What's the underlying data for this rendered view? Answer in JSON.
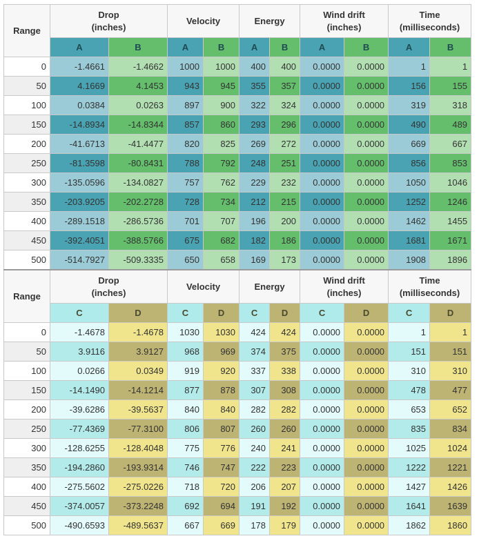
{
  "colors": {
    "A_header": "#4aa3b2",
    "B_header": "#64be6c",
    "A_light": "#9bcbd6",
    "A_dark": "#4aa3b2",
    "B_light": "#b2dfb2",
    "B_dark": "#64be6c",
    "C_header": "#b0ebeb",
    "D_header": "#bdb373",
    "C_light": "#e3fbfb",
    "C_dark": "#b3ebeb",
    "D_light": "#f0e48c",
    "D_dark": "#bdb373"
  },
  "headers": {
    "range": "Range",
    "drop": [
      "Drop",
      "(inches)"
    ],
    "velocity": "Velocity",
    "energy": "Energy",
    "wind": [
      "Wind drift",
      "(inches)"
    ],
    "time": [
      "Time",
      "(milliseconds)"
    ]
  },
  "tables": [
    {
      "first": "A",
      "second": "B",
      "rows": [
        {
          "range": "0",
          "drop": [
            "-1.4661",
            "-1.4662"
          ],
          "vel": [
            "1000",
            "1000"
          ],
          "en": [
            "400",
            "400"
          ],
          "wind": [
            "0.0000",
            "0.0000"
          ],
          "time": [
            "1",
            "1"
          ]
        },
        {
          "range": "50",
          "drop": [
            "4.1669",
            "4.1453"
          ],
          "vel": [
            "943",
            "945"
          ],
          "en": [
            "355",
            "357"
          ],
          "wind": [
            "0.0000",
            "0.0000"
          ],
          "time": [
            "156",
            "155"
          ]
        },
        {
          "range": "100",
          "drop": [
            "0.0384",
            "0.0263"
          ],
          "vel": [
            "897",
            "900"
          ],
          "en": [
            "322",
            "324"
          ],
          "wind": [
            "0.0000",
            "0.0000"
          ],
          "time": [
            "319",
            "318"
          ]
        },
        {
          "range": "150",
          "drop": [
            "-14.8934",
            "-14.8344"
          ],
          "vel": [
            "857",
            "860"
          ],
          "en": [
            "293",
            "296"
          ],
          "wind": [
            "0.0000",
            "0.0000"
          ],
          "time": [
            "490",
            "489"
          ]
        },
        {
          "range": "200",
          "drop": [
            "-41.6713",
            "-41.4477"
          ],
          "vel": [
            "820",
            "825"
          ],
          "en": [
            "269",
            "272"
          ],
          "wind": [
            "0.0000",
            "0.0000"
          ],
          "time": [
            "669",
            "667"
          ]
        },
        {
          "range": "250",
          "drop": [
            "-81.3598",
            "-80.8431"
          ],
          "vel": [
            "788",
            "792"
          ],
          "en": [
            "248",
            "251"
          ],
          "wind": [
            "0.0000",
            "0.0000"
          ],
          "time": [
            "856",
            "853"
          ]
        },
        {
          "range": "300",
          "drop": [
            "-135.0596",
            "-134.0827"
          ],
          "vel": [
            "757",
            "762"
          ],
          "en": [
            "229",
            "232"
          ],
          "wind": [
            "0.0000",
            "0.0000"
          ],
          "time": [
            "1050",
            "1046"
          ]
        },
        {
          "range": "350",
          "drop": [
            "-203.9205",
            "-202.2728"
          ],
          "vel": [
            "728",
            "734"
          ],
          "en": [
            "212",
            "215"
          ],
          "wind": [
            "0.0000",
            "0.0000"
          ],
          "time": [
            "1252",
            "1246"
          ]
        },
        {
          "range": "400",
          "drop": [
            "-289.1518",
            "-286.5736"
          ],
          "vel": [
            "701",
            "707"
          ],
          "en": [
            "196",
            "200"
          ],
          "wind": [
            "0.0000",
            "0.0000"
          ],
          "time": [
            "1462",
            "1455"
          ]
        },
        {
          "range": "450",
          "drop": [
            "-392.4051",
            "-388.5766"
          ],
          "vel": [
            "675",
            "682"
          ],
          "en": [
            "182",
            "186"
          ],
          "wind": [
            "0.0000",
            "0.0000"
          ],
          "time": [
            "1681",
            "1671"
          ]
        },
        {
          "range": "500",
          "drop": [
            "-514.7927",
            "-509.3335"
          ],
          "vel": [
            "650",
            "658"
          ],
          "en": [
            "169",
            "173"
          ],
          "wind": [
            "0.0000",
            "0.0000"
          ],
          "time": [
            "1908",
            "1896"
          ]
        }
      ]
    },
    {
      "first": "C",
      "second": "D",
      "rows": [
        {
          "range": "0",
          "drop": [
            "-1.4678",
            "-1.4678"
          ],
          "vel": [
            "1030",
            "1030"
          ],
          "en": [
            "424",
            "424"
          ],
          "wind": [
            "0.0000",
            "0.0000"
          ],
          "time": [
            "1",
            "1"
          ]
        },
        {
          "range": "50",
          "drop": [
            "3.9116",
            "3.9127"
          ],
          "vel": [
            "968",
            "969"
          ],
          "en": [
            "374",
            "375"
          ],
          "wind": [
            "0.0000",
            "0.0000"
          ],
          "time": [
            "151",
            "151"
          ]
        },
        {
          "range": "100",
          "drop": [
            "0.0266",
            "0.0349"
          ],
          "vel": [
            "919",
            "920"
          ],
          "en": [
            "337",
            "338"
          ],
          "wind": [
            "0.0000",
            "0.0000"
          ],
          "time": [
            "310",
            "310"
          ]
        },
        {
          "range": "150",
          "drop": [
            "-14.1490",
            "-14.1214"
          ],
          "vel": [
            "877",
            "878"
          ],
          "en": [
            "307",
            "308"
          ],
          "wind": [
            "0.0000",
            "0.0000"
          ],
          "time": [
            "478",
            "477"
          ]
        },
        {
          "range": "200",
          "drop": [
            "-39.6286",
            "-39.5637"
          ],
          "vel": [
            "840",
            "840"
          ],
          "en": [
            "282",
            "282"
          ],
          "wind": [
            "0.0000",
            "0.0000"
          ],
          "time": [
            "653",
            "652"
          ]
        },
        {
          "range": "250",
          "drop": [
            "-77.4369",
            "-77.3100"
          ],
          "vel": [
            "806",
            "807"
          ],
          "en": [
            "260",
            "260"
          ],
          "wind": [
            "0.0000",
            "0.0000"
          ],
          "time": [
            "835",
            "834"
          ]
        },
        {
          "range": "300",
          "drop": [
            "-128.6255",
            "-128.4048"
          ],
          "vel": [
            "775",
            "776"
          ],
          "en": [
            "240",
            "241"
          ],
          "wind": [
            "0.0000",
            "0.0000"
          ],
          "time": [
            "1025",
            "1024"
          ]
        },
        {
          "range": "350",
          "drop": [
            "-194.2860",
            "-193.9314"
          ],
          "vel": [
            "746",
            "747"
          ],
          "en": [
            "222",
            "223"
          ],
          "wind": [
            "0.0000",
            "0.0000"
          ],
          "time": [
            "1222",
            "1221"
          ]
        },
        {
          "range": "400",
          "drop": [
            "-275.5602",
            "-275.0226"
          ],
          "vel": [
            "718",
            "720"
          ],
          "en": [
            "206",
            "207"
          ],
          "wind": [
            "0.0000",
            "0.0000"
          ],
          "time": [
            "1427",
            "1426"
          ]
        },
        {
          "range": "450",
          "drop": [
            "-374.0057",
            "-373.2248"
          ],
          "vel": [
            "692",
            "694"
          ],
          "en": [
            "191",
            "192"
          ],
          "wind": [
            "0.0000",
            "0.0000"
          ],
          "time": [
            "1641",
            "1639"
          ]
        },
        {
          "range": "500",
          "drop": [
            "-490.6593",
            "-489.5637"
          ],
          "vel": [
            "667",
            "669"
          ],
          "en": [
            "178",
            "179"
          ],
          "wind": [
            "0.0000",
            "0.0000"
          ],
          "time": [
            "1862",
            "1860"
          ]
        }
      ]
    }
  ]
}
